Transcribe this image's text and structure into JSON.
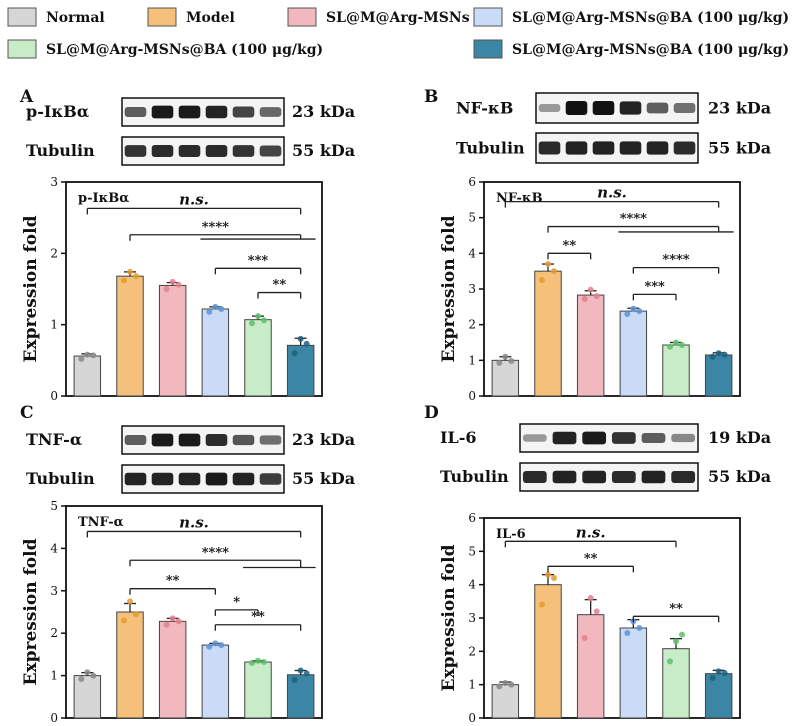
{
  "legend": [
    {
      "label": "Normal",
      "color": "#d6d6d6"
    },
    {
      "label": "Model",
      "color": "#f5c07a"
    },
    {
      "label": "SL@M@Arg-MSNs",
      "color": "#f2b8bf"
    },
    {
      "label": "SL@M@Arg-MSNs@BA (100 μg/kg)",
      "color": "#c9dbf6"
    },
    {
      "label": "SL@M@Arg-MSNs@BA (100 μg/kg)",
      "color": "#c8ebc8"
    },
    {
      "label": "SL@M@Arg-MSNs@BA (100 μg/kg)",
      "color": "#3a86a4"
    }
  ],
  "dot_colors": [
    "#888888",
    "#e59a2f",
    "#e07f8e",
    "#5d93d8",
    "#5fbf6a",
    "#1e5f7e"
  ],
  "chart_data": [
    {
      "panel": "A",
      "type": "bar",
      "title": "p-IκBα",
      "categories": [
        "Normal",
        "Model",
        "SL@M@Arg-MSNs",
        "SL@M@Arg-MSNs@BA (100 μg/kg)",
        "SL@M@Arg-MSNs@BA (100 μg/kg)",
        "SL@M@Arg-MSNs@BA (100 μg/kg)"
      ],
      "values": [
        0.56,
        1.68,
        1.55,
        1.22,
        1.07,
        0.71
      ],
      "errors": [
        0.03,
        0.06,
        0.04,
        0.03,
        0.05,
        0.1
      ],
      "points": [
        [
          0.52,
          0.58,
          0.57
        ],
        [
          1.62,
          1.74,
          1.68
        ],
        [
          1.5,
          1.6,
          1.56
        ],
        [
          1.18,
          1.25,
          1.22
        ],
        [
          1.02,
          1.12,
          1.06
        ],
        [
          0.6,
          0.8,
          0.73
        ]
      ],
      "ylabel": "Expression fold",
      "ylim": [
        0,
        3
      ],
      "yticks": [
        0,
        1,
        2,
        3
      ],
      "blots": [
        {
          "label": "p-IκBα",
          "kda": "23 kDa"
        },
        {
          "label": "Tubulin",
          "kda": "55 kDa"
        }
      ],
      "sig": [
        {
          "from": 0,
          "to": 5,
          "y": 2.63,
          "label": "n.s.",
          "italic": true
        },
        {
          "from": 1,
          "to": 5,
          "y": 2.26,
          "label": "****",
          "group": [
            3,
            5
          ],
          "group_y": 2.2
        },
        {
          "from": 3,
          "to": 5,
          "y": 1.79,
          "label": "***"
        },
        {
          "from": 4,
          "to": 5,
          "y": 1.45,
          "label": "**"
        }
      ]
    },
    {
      "panel": "B",
      "type": "bar",
      "title": "NF-κB",
      "categories": [
        "Normal",
        "Model",
        "SL@M@Arg-MSNs",
        "SL@M@Arg-MSNs@BA (100 μg/kg)",
        "SL@M@Arg-MSNs@BA (100 μg/kg)",
        "SL@M@Arg-MSNs@BA (100 μg/kg)"
      ],
      "values": [
        1.0,
        3.5,
        2.83,
        2.38,
        1.43,
        1.15
      ],
      "errors": [
        0.1,
        0.2,
        0.12,
        0.08,
        0.07,
        0.06
      ],
      "points": [
        [
          0.93,
          1.1,
          0.98
        ],
        [
          3.25,
          3.7,
          3.5
        ],
        [
          2.72,
          2.98,
          2.8
        ],
        [
          2.3,
          2.45,
          2.38
        ],
        [
          1.38,
          1.5,
          1.43
        ],
        [
          1.1,
          1.2,
          1.16
        ]
      ],
      "ylabel": "Expression fold",
      "ylim": [
        0,
        6
      ],
      "yticks": [
        0,
        1,
        2,
        3,
        4,
        5,
        6
      ],
      "blots": [
        {
          "label": "NF-κB",
          "kda": "23 kDa"
        },
        {
          "label": "Tubulin",
          "kda": "55 kDa"
        }
      ],
      "sig": [
        {
          "from": 0,
          "to": 5,
          "y": 5.45,
          "label": "n.s.",
          "italic": true
        },
        {
          "from": 1,
          "to": 5,
          "y": 4.75,
          "label": "****",
          "group": [
            3,
            5
          ],
          "group_y": 4.6
        },
        {
          "from": 1,
          "to": 2,
          "y": 4.0,
          "label": "**"
        },
        {
          "from": 3,
          "to": 5,
          "y": 3.6,
          "label": "****"
        },
        {
          "from": 3,
          "to": 4,
          "y": 2.85,
          "label": "***"
        }
      ]
    },
    {
      "panel": "C",
      "type": "bar",
      "title": "TNF-α",
      "categories": [
        "Normal",
        "Model",
        "SL@M@Arg-MSNs",
        "SL@M@Arg-MSNs@BA (100 μg/kg)",
        "SL@M@Arg-MSNs@BA (100 μg/kg)",
        "SL@M@Arg-MSNs@BA (100 μg/kg)"
      ],
      "values": [
        1.0,
        2.5,
        2.28,
        1.72,
        1.32,
        1.02
      ],
      "errors": [
        0.07,
        0.2,
        0.07,
        0.04,
        0.03,
        0.1
      ],
      "points": [
        [
          0.92,
          1.08,
          1.0
        ],
        [
          2.3,
          2.75,
          2.45
        ],
        [
          2.2,
          2.35,
          2.28
        ],
        [
          1.68,
          1.76,
          1.72
        ],
        [
          1.3,
          1.35,
          1.32
        ],
        [
          0.9,
          1.12,
          1.05
        ]
      ],
      "ylabel": "Expression fold",
      "ylim": [
        0,
        5
      ],
      "yticks": [
        0,
        1,
        2,
        3,
        4,
        5
      ],
      "blots": [
        {
          "label": "TNF-α",
          "kda": "23 kDa"
        },
        {
          "label": "Tubulin",
          "kda": "55 kDa"
        }
      ],
      "sig": [
        {
          "from": 0,
          "to": 5,
          "y": 4.4,
          "label": "n.s.",
          "italic": true
        },
        {
          "from": 1,
          "to": 5,
          "y": 3.72,
          "label": "****",
          "group": [
            4,
            5
          ],
          "group_y": 3.55
        },
        {
          "from": 1,
          "to": 3,
          "y": 3.05,
          "label": "**"
        },
        {
          "from": 3,
          "to": 4,
          "y": 2.55,
          "label": "*"
        },
        {
          "from": 3,
          "to": 5,
          "y": 2.2,
          "label": "**"
        }
      ]
    },
    {
      "panel": "D",
      "type": "bar",
      "title": "IL-6",
      "categories": [
        "Normal",
        "Model",
        "SL@M@Arg-MSNs",
        "SL@M@Arg-MSNs@BA (100 μg/kg)",
        "SL@M@Arg-MSNs@BA (100 μg/kg)",
        "SL@M@Arg-MSNs@BA (100 μg/kg)"
      ],
      "values": [
        1.0,
        4.0,
        3.1,
        2.7,
        2.08,
        1.33
      ],
      "errors": [
        0.08,
        0.3,
        0.45,
        0.25,
        0.3,
        0.1
      ],
      "points": [
        [
          0.95,
          1.05,
          1.0
        ],
        [
          3.4,
          4.3,
          4.2
        ],
        [
          2.4,
          3.6,
          3.2
        ],
        [
          2.55,
          2.9,
          2.7
        ],
        [
          1.7,
          2.3,
          2.5
        ],
        [
          1.2,
          1.4,
          1.35
        ]
      ],
      "ylabel": "Expression fold",
      "ylim": [
        0,
        6
      ],
      "yticks": [
        0,
        1,
        2,
        3,
        4,
        5,
        6
      ],
      "blots": [
        {
          "label": "IL-6",
          "kda": "19 kDa"
        },
        {
          "label": "Tubulin",
          "kda": "55 kDa"
        }
      ],
      "sig": [
        {
          "from": 0,
          "to": 4,
          "y": 5.3,
          "label": "n.s.",
          "italic": true
        },
        {
          "from": 1,
          "to": 3,
          "y": 4.55,
          "label": "**"
        },
        {
          "from": 3,
          "to": 5,
          "y": 3.05,
          "label": "**"
        }
      ]
    }
  ],
  "panel_letters": [
    "A",
    "B",
    "C",
    "D"
  ]
}
